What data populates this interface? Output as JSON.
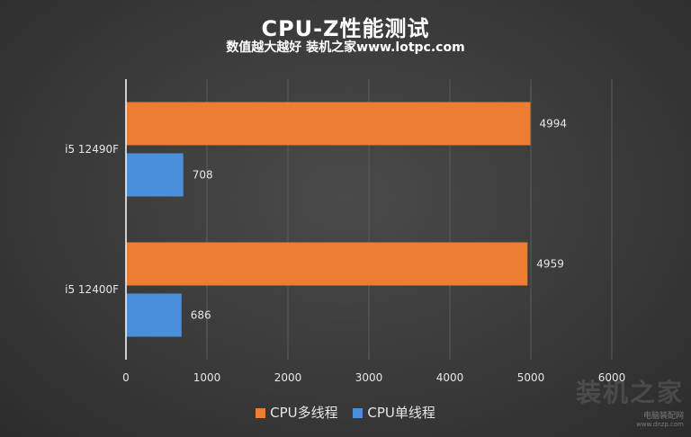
{
  "header": {
    "title": "CPU-Z性能测试",
    "subtitle": "数值越大越好 装机之家www.lotpc.com"
  },
  "colors": {
    "multi": "#ed7d31",
    "single": "#4a8fd9",
    "text": "#e6e6e6",
    "grid": "#5c5c5c",
    "axis": "#ffffff"
  },
  "chart_data": {
    "type": "bar",
    "orientation": "horizontal",
    "categories": [
      "i5 12490F",
      "i5 12400F"
    ],
    "series": [
      {
        "name": "CPU多线程",
        "values": [
          4994,
          4959
        ]
      },
      {
        "name": "CPU单线程",
        "values": [
          708,
          686
        ]
      }
    ],
    "xlim": [
      0,
      6000
    ],
    "xticks": [
      "0",
      "1000",
      "2000",
      "3000",
      "4000",
      "5000",
      "6000"
    ],
    "grid": true,
    "legend": "bottom"
  },
  "watermark": {
    "text": "装机之家",
    "site": "电脑装配网",
    "url": "www.dnzp.com"
  }
}
